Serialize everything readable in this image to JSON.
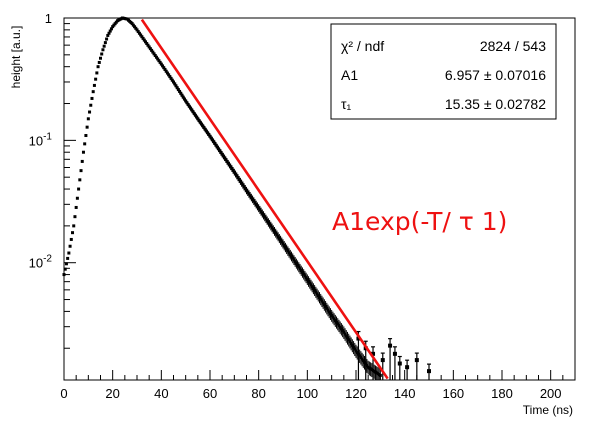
{
  "chart_data": {
    "type": "scatter",
    "title": "",
    "xlabel": "Time (ns)",
    "ylabel": "height [a.u.]",
    "xlim": [
      0,
      210
    ],
    "ylim": [
      0.0011,
      1.0
    ],
    "yscale": "log",
    "grid": false,
    "x_ticks": [
      0,
      20,
      40,
      60,
      80,
      100,
      120,
      140,
      160,
      180,
      200
    ],
    "x_tick_labels": [
      "0",
      "20",
      "40",
      "60",
      "80",
      "100",
      "120",
      "140",
      "160",
      "180",
      "200"
    ],
    "y_ticks": [
      1,
      0.1,
      0.01
    ],
    "y_tick_labels": [
      {
        "base": "1",
        "exp": ""
      },
      {
        "base": "10",
        "exp": "-1"
      },
      {
        "base": "10",
        "exp": "-2"
      }
    ],
    "series": [
      {
        "role": "data",
        "color": "#000000",
        "x": [
          0,
          2,
          4,
          6,
          8,
          10,
          12,
          14,
          16,
          18,
          20,
          22,
          24,
          26,
          28,
          30,
          35,
          40,
          45,
          50,
          55,
          60,
          65,
          70,
          75,
          80,
          85,
          90,
          95,
          100,
          105,
          110,
          115,
          120,
          125,
          130
        ],
        "y": [
          0.008,
          0.012,
          0.02,
          0.04,
          0.08,
          0.15,
          0.25,
          0.4,
          0.55,
          0.72,
          0.85,
          0.95,
          1.0,
          0.98,
          0.9,
          0.8,
          0.58,
          0.42,
          0.3,
          0.21,
          0.15,
          0.108,
          0.077,
          0.055,
          0.039,
          0.028,
          0.02,
          0.0143,
          0.0102,
          0.0073,
          0.0052,
          0.0037,
          0.0027,
          0.0019,
          0.0014,
          0.0012
        ]
      },
      {
        "role": "sparse-tail",
        "color": "#000000",
        "x": [
          121,
          124,
          127,
          131,
          134,
          136,
          138,
          141,
          145,
          150
        ],
        "y": [
          0.0024,
          0.002,
          0.0018,
          0.0016,
          0.0021,
          0.0018,
          0.0015,
          0.0014,
          0.0016,
          0.0013
        ]
      },
      {
        "role": "fit",
        "color": "#ee1111",
        "x": [
          32,
          133
        ],
        "y": [
          0.97,
          0.00113
        ]
      }
    ],
    "stats_box": {
      "rows": [
        {
          "name": "χ² / ndf",
          "value": "2824 / 543"
        },
        {
          "name": "A1",
          "value": "6.957 ± 0.07016"
        },
        {
          "name": "τ₁",
          "value": "15.35 ± 0.02782"
        }
      ]
    },
    "annotation": "A1exp(-T/ τ 1)"
  }
}
